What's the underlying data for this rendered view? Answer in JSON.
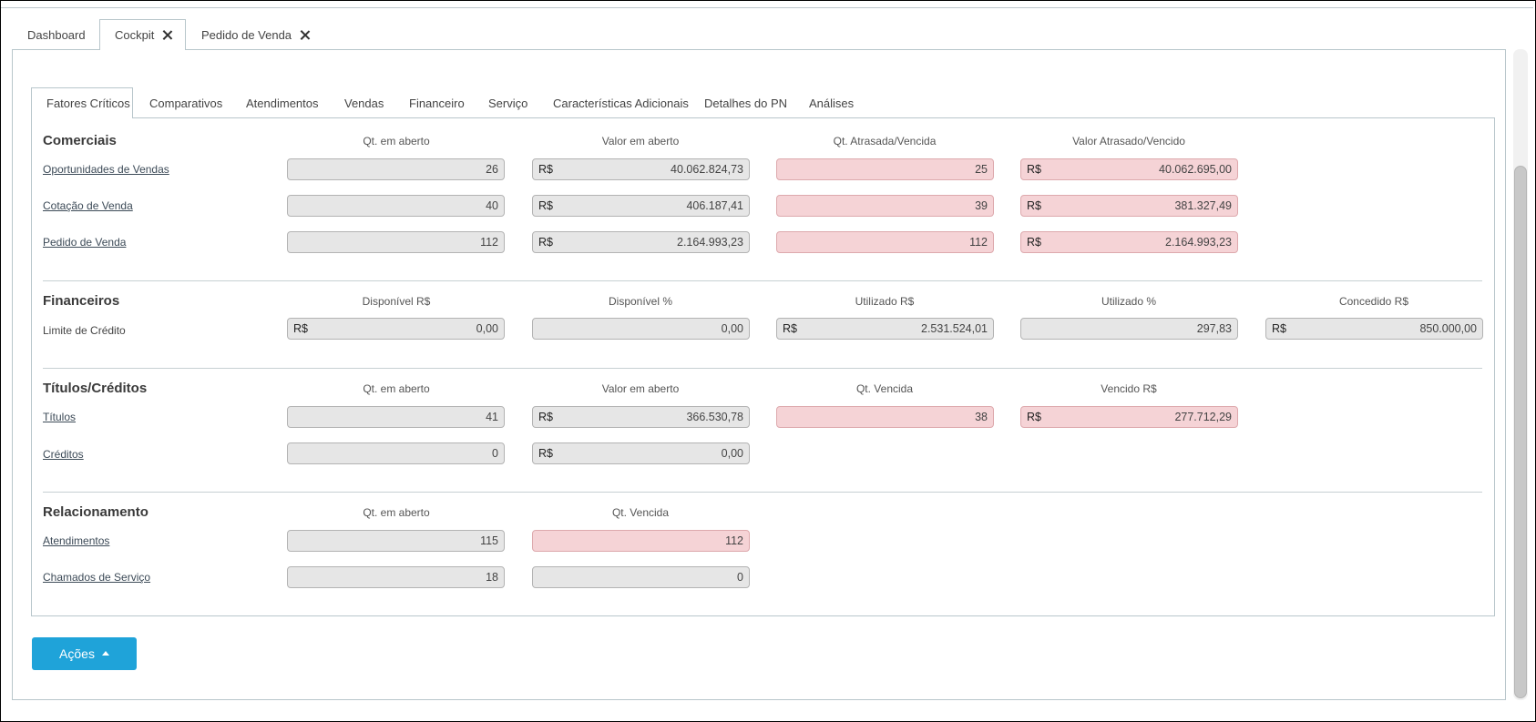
{
  "top_tabs": [
    {
      "label": "Dashboard",
      "closable": false,
      "active": false
    },
    {
      "label": "Cockpit",
      "closable": true,
      "active": true
    },
    {
      "label": "Pedido de Venda",
      "closable": true,
      "active": false
    }
  ],
  "inner_tabs": [
    {
      "label": "Fatores Críticos",
      "active": true
    },
    {
      "label": "Comparativos"
    },
    {
      "label": "Atendimentos"
    },
    {
      "label": "Vendas"
    },
    {
      "label": "Financeiro"
    },
    {
      "label": "Serviço"
    },
    {
      "label": "Características Adicionais"
    },
    {
      "label": "Detalhes do PN"
    },
    {
      "label": "Análises"
    }
  ],
  "currency": "R$",
  "comerciais": {
    "title": "Comerciais",
    "columns": [
      "Qt. em aberto",
      "Valor em aberto",
      "Qt. Atrasada/Vencida",
      "Valor Atrasado/Vencido"
    ],
    "rows": [
      {
        "label": "Oportunidades de Vendas",
        "qt": "26",
        "valor": "40.062.824,73",
        "qt_atrasada": "25",
        "valor_atrasado": "40.062.695,00"
      },
      {
        "label": "Cotação de Venda",
        "qt": "40",
        "valor": "406.187,41",
        "qt_atrasada": "39",
        "valor_atrasado": "381.327,49"
      },
      {
        "label": "Pedido de Venda",
        "qt": "112",
        "valor": "2.164.993,23",
        "qt_atrasada": "112",
        "valor_atrasado": "2.164.993,23"
      }
    ]
  },
  "financeiros": {
    "title": "Financeiros",
    "columns": [
      "Disponível R$",
      "Disponível %",
      "Utilizado R$",
      "Utilizado %",
      "Concedido R$"
    ],
    "row": {
      "label": "Limite de Crédito",
      "disponivel_rs": "0,00",
      "disponivel_pct": "0,00",
      "utilizado_rs": "2.531.524,01",
      "utilizado_pct": "297,83",
      "concedido_rs": "850.000,00"
    }
  },
  "titulos": {
    "title": "Títulos/Créditos",
    "columns": [
      "Qt. em aberto",
      "Valor em aberto",
      "Qt. Vencida",
      "Vencido R$"
    ],
    "rows": [
      {
        "label": "Títulos",
        "qt": "41",
        "valor": "366.530,78",
        "qt_vencida": "38",
        "vencido": "277.712,29"
      },
      {
        "label": "Créditos",
        "qt": "0",
        "valor": "0,00"
      }
    ]
  },
  "relacionamento": {
    "title": "Relacionamento",
    "columns": [
      "Qt. em aberto",
      "Qt. Vencida"
    ],
    "rows": [
      {
        "label": "Atendimentos",
        "qt": "115",
        "qt_vencida": "112"
      },
      {
        "label": "Chamados de Serviço",
        "qt": "18",
        "qt_vencida": "0"
      }
    ]
  },
  "actions_button": {
    "label": "Ações"
  },
  "colors": {
    "accent": "#1fa3d9",
    "alert_field": "#f5d3d6",
    "field": "#e6e6e6"
  }
}
